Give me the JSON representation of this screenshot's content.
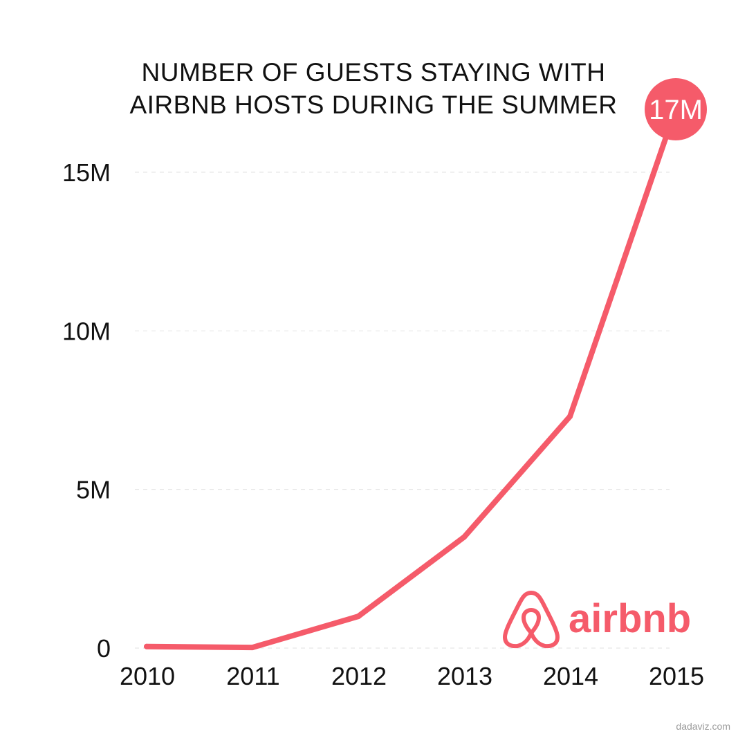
{
  "title": {
    "line1": "NUMBER OF GUESTS STAYING WITH",
    "line2": "AIRBNB HOSTS DURING THE SUMMER"
  },
  "logo": {
    "text": "airbnb",
    "icon": "airbnb-belo-icon"
  },
  "watermark": "dadaviz.com",
  "colors": {
    "accent": "#F55B6A",
    "grid": "#e2e2e2",
    "text": "#111111"
  },
  "chart_data": {
    "type": "line",
    "categories": [
      "2010",
      "2011",
      "2012",
      "2013",
      "2014",
      "2015"
    ],
    "series": [
      {
        "values": [
          0.05,
          0.02,
          1.0,
          3.5,
          7.3,
          17.0
        ]
      }
    ],
    "yticks": [
      {
        "value": 0,
        "label": "0"
      },
      {
        "value": 5,
        "label": "5M"
      },
      {
        "value": 10,
        "label": "10M"
      },
      {
        "value": 15,
        "label": "15M"
      }
    ],
    "ylim": [
      0,
      17
    ],
    "grid": true,
    "annotations": [
      {
        "category": "2015",
        "text": "17M"
      }
    ]
  }
}
